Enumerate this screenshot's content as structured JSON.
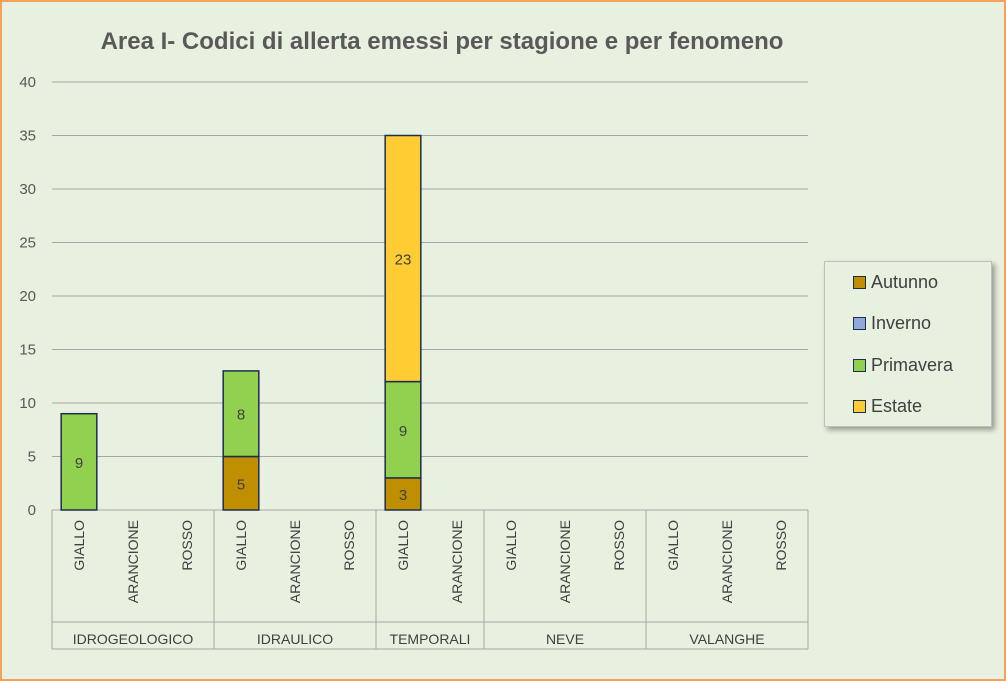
{
  "chart_data": {
    "type": "bar",
    "stacked": true,
    "title": "Area I- Codici di allerta emessi per stagione e per fenomeno",
    "xlabel": "",
    "ylabel": "",
    "ylim": [
      0,
      40
    ],
    "yticks": [
      0,
      5,
      10,
      15,
      20,
      25,
      30,
      35,
      40
    ],
    "grid": true,
    "legend_position": "right",
    "groups": [
      {
        "name": "IDROGEOLOGICO",
        "categories": [
          "GIALLO",
          "ARANCIONE",
          "ROSSO"
        ]
      },
      {
        "name": "IDRAULICO",
        "categories": [
          "GIALLO",
          "ARANCIONE",
          "ROSSO"
        ]
      },
      {
        "name": "TEMPORALI",
        "categories": [
          "GIALLO",
          "ARANCIONE"
        ]
      },
      {
        "name": "NEVE",
        "categories": [
          "GIALLO",
          "ARANCIONE",
          "ROSSO"
        ]
      },
      {
        "name": "VALANGHE",
        "categories": [
          "GIALLO",
          "ARANCIONE",
          "ROSSO"
        ]
      }
    ],
    "series": [
      {
        "name": "Autunno",
        "color": "#bf8f00",
        "values": [
          0,
          0,
          0,
          5,
          0,
          0,
          3,
          0,
          0,
          0,
          0,
          0,
          0,
          0
        ]
      },
      {
        "name": "Inverno",
        "color": "#8eaadb",
        "values": [
          0,
          0,
          0,
          0,
          0,
          0,
          0,
          0,
          0,
          0,
          0,
          0,
          0,
          0
        ]
      },
      {
        "name": "Primavera",
        "color": "#92d050",
        "values": [
          9,
          0,
          0,
          8,
          0,
          0,
          9,
          0,
          0,
          0,
          0,
          0,
          0,
          0
        ]
      },
      {
        "name": "Estate",
        "color": "#ffcc33",
        "values": [
          0,
          0,
          0,
          0,
          0,
          0,
          23,
          0,
          0,
          0,
          0,
          0,
          0,
          0
        ]
      }
    ]
  }
}
